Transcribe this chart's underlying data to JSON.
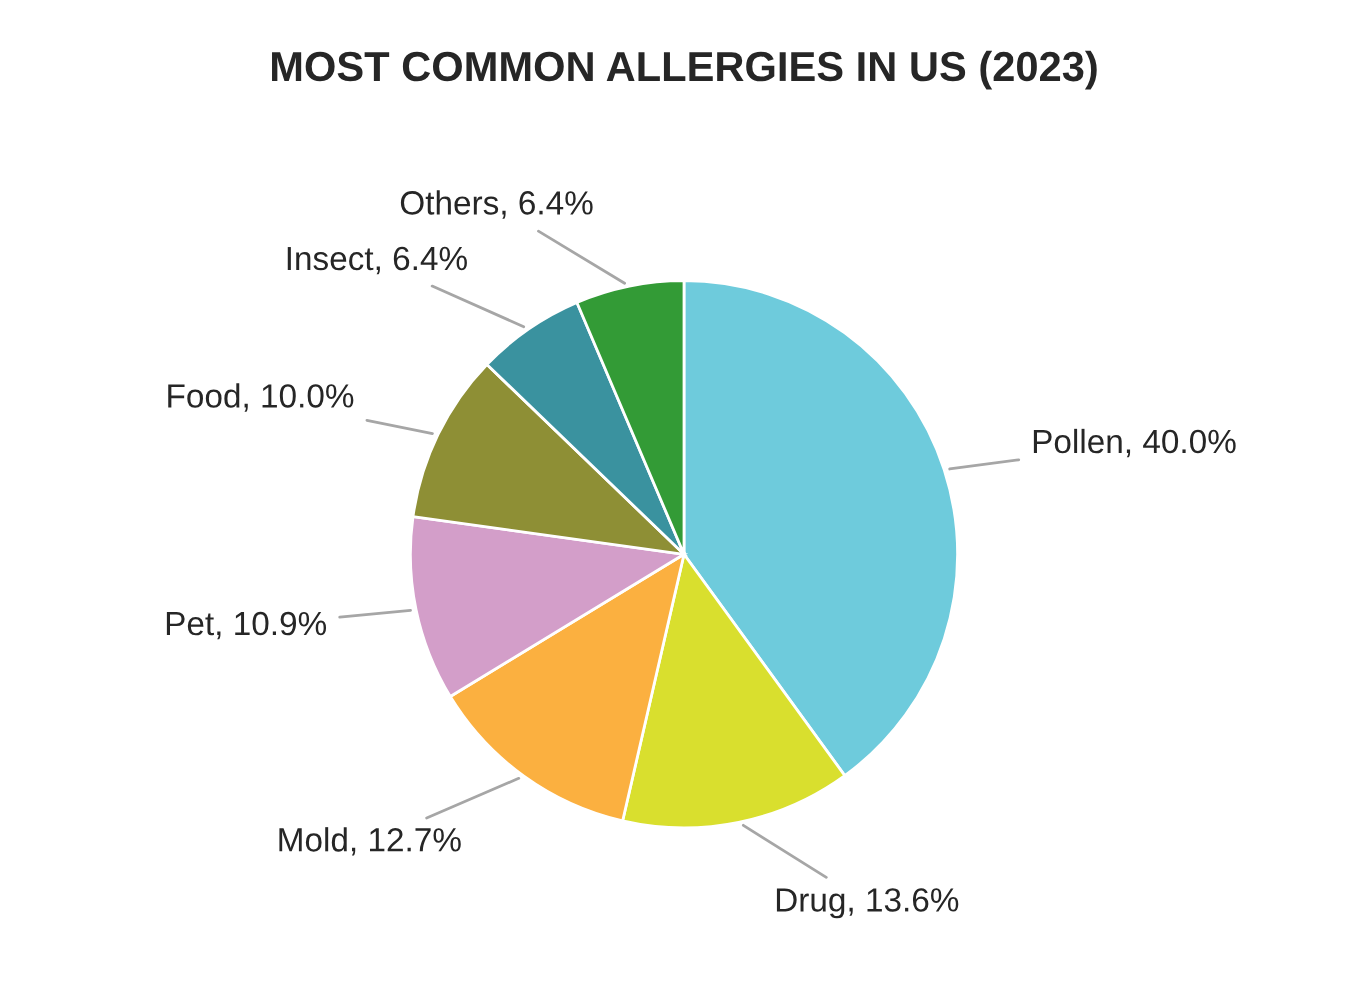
{
  "chart_data": {
    "type": "pie",
    "title": "MOST COMMON ALLERGIES IN US (2023)",
    "categories": [
      "Pollen",
      "Drug",
      "Mold",
      "Pet",
      "Food",
      "Insect",
      "Others"
    ],
    "values": [
      40.0,
      13.6,
      12.7,
      10.9,
      10.0,
      6.4,
      6.4
    ],
    "value_labels": [
      "40.0%",
      "13.6%",
      "12.7%",
      "10.9%",
      "10.0%",
      "6.4%",
      "6.4%"
    ],
    "colors": [
      "#6ecbdc",
      "#d9df2e",
      "#fbb040",
      "#d39ec9",
      "#8e8f35",
      "#3a929f",
      "#339b36"
    ],
    "legend": false
  }
}
